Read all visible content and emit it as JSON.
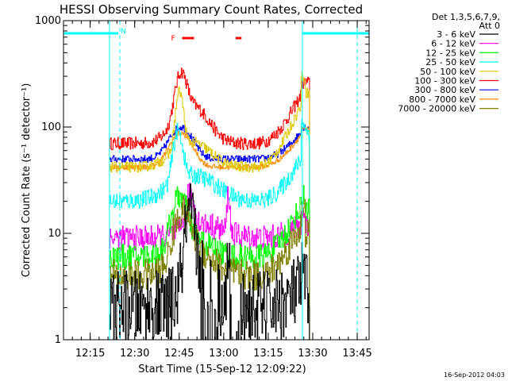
{
  "chart_data": {
    "type": "line",
    "title": "HESSI Observing Summary Count Rates, Corrected",
    "ylabel": "Corrected Count Rate (s⁻¹ detector⁻¹)",
    "xlabel": "Start Time (15-Sep-12 12:09:22)",
    "footer": "16-Sep-2012 04:03",
    "y_scale": "log",
    "ylim": [
      1,
      1000
    ],
    "xlim_minutes": [
      -3,
      100
    ],
    "yticks": [
      {
        "value": 1,
        "label": "1"
      },
      {
        "value": 10,
        "label": "10"
      },
      {
        "value": 100,
        "label": "100"
      },
      {
        "value": 1000,
        "label": "1000"
      }
    ],
    "xticks": [
      {
        "value": 6,
        "label": "12:15"
      },
      {
        "value": 21,
        "label": "12:30"
      },
      {
        "value": 36,
        "label": "12:45"
      },
      {
        "value": 51,
        "label": "13:00"
      },
      {
        "value": 66,
        "label": "13:15"
      },
      {
        "value": 81,
        "label": "13:30"
      },
      {
        "value": 96,
        "label": "13:45"
      }
    ],
    "legend": {
      "placement": "right",
      "header": [
        "Det 1,3,5,6,7,9,",
        "Att 0"
      ],
      "entries": [
        {
          "label": "3 - 6 keV",
          "color": "#000000"
        },
        {
          "label": "6 - 12 keV",
          "color": "#ff00ff"
        },
        {
          "label": "12 - 25 keV",
          "color": "#00ff00"
        },
        {
          "label": "25 - 50 keV",
          "color": "#00ffff"
        },
        {
          "label": "50 - 100 keV",
          "color": "#e0c800"
        },
        {
          "label": "100 - 300 keV",
          "color": "#ff0000"
        },
        {
          "label": "300 - 800 keV",
          "color": "#0000ff"
        },
        {
          "label": "800 - 7000 keV",
          "color": "#ff8c00"
        },
        {
          "label": "7000 - 20000 keV",
          "color": "#808000"
        }
      ]
    },
    "flags": {
      "night_label": "N",
      "flare_label": "F",
      "night_intervals": [
        [
          -3,
          15.5
        ],
        [
          77.5,
          100
        ]
      ],
      "flare_bars": [
        [
          37,
          41
        ],
        [
          55,
          57
        ]
      ]
    },
    "markers": {
      "cyan_solid": [
        -3,
        12.5,
        77.5
      ],
      "cyan_dashed": [
        16,
        96
      ]
    },
    "data_window": [
      12.5,
      80
    ],
    "series": [
      {
        "color": "#ff0000",
        "base": 70,
        "bump": 190,
        "bt": 36.5,
        "bw": 2.4,
        "tail": 90,
        "tw": 7,
        "e1": 200,
        "e2": 260,
        "end": 260,
        "noise": 0.06
      },
      {
        "color": "#0000ff",
        "base": 50,
        "bump": 50,
        "bt": 36.5,
        "bw": 5,
        "tail": 0,
        "tw": 1,
        "e1": 90,
        "e2": 100,
        "end": 100,
        "noise": 0.035
      },
      {
        "color": "#ff8c00",
        "base": 42,
        "bump": 45,
        "bt": 36.5,
        "bw": 5,
        "tail": 0,
        "tw": 1,
        "e1": 85,
        "e2": 95,
        "end": 95,
        "noise": 0.025
      },
      {
        "color": "#e0c800",
        "base": 42,
        "bump": 150,
        "bt": 36,
        "bw": 1.6,
        "tail": 30,
        "tw": 8,
        "e1": 160,
        "e2": 300,
        "end": 210,
        "noise": 0.05
      },
      {
        "color": "#00ffff",
        "base": 20,
        "bump": 60,
        "bt": 35.5,
        "bw": 2,
        "tail": 15,
        "tw": 10,
        "e1": 50,
        "e2": 110,
        "end": 90,
        "noise": 0.08
      },
      {
        "color": "#ff00ff",
        "base": 9,
        "bump": 12,
        "bt": 39.5,
        "bw": 2,
        "tail": 3,
        "tw": 9,
        "spike": 52.5,
        "e1": 12,
        "e2": 15,
        "end": 12,
        "noise": 0.12
      },
      {
        "color": "#00ff00",
        "base": 6,
        "bump": 14,
        "bt": 36,
        "bw": 3.2,
        "tail": 3,
        "tw": 8,
        "e1": 18,
        "e2": 22,
        "end": 18,
        "noise": 0.12
      },
      {
        "color": "#808000",
        "base": 4,
        "bump": 10,
        "bt": 37,
        "bw": 3.5,
        "tail": 3,
        "tw": 8,
        "e1": 12,
        "e2": 15,
        "end": 10,
        "noise": 0.15
      },
      {
        "color": "#000000",
        "base": 2,
        "bump": 10,
        "bt": 39.5,
        "bw": 2.2,
        "tail": 2,
        "tw": 6,
        "spike": 52.5,
        "e1": 3,
        "e2": 4,
        "end": 3,
        "noise": 0.35,
        "dropouts": [
          [
            43,
            49
          ],
          [
            53,
            58
          ]
        ]
      }
    ]
  }
}
